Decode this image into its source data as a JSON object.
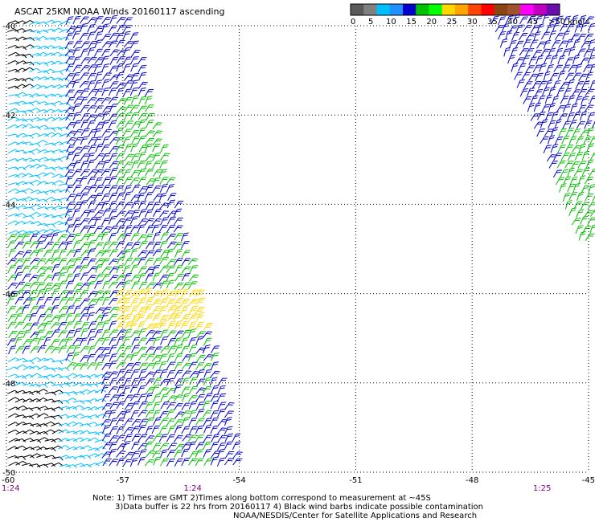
{
  "title": "ASCAT 25KM NOAA Winds 20160117 ascending",
  "colorbar": {
    "colors": [
      "#5a5a5a",
      "#808080",
      "#00bfff",
      "#1e90ff",
      "#0000cd",
      "#00c000",
      "#00ff00",
      "#ffd700",
      "#ffa500",
      "#ff4500",
      "#ff0000",
      "#8b4513",
      "#a0522d",
      "#ff00ff",
      "#c000c0",
      "#6a0dad"
    ],
    "labels": [
      "0",
      "5",
      "10",
      "15",
      "20",
      "25",
      "30",
      "35",
      "40",
      "45",
      ">50 knots"
    ],
    "label_values": [
      0,
      5,
      10,
      15,
      20,
      25,
      30,
      35,
      40,
      45,
      50
    ]
  },
  "map": {
    "lon_range": [
      -60,
      -45
    ],
    "lat_range": [
      -50,
      -40
    ],
    "lon_ticks": [
      "-60",
      "-57",
      "-54",
      "-51",
      "-48",
      "-45"
    ],
    "lon_tick_values": [
      -60,
      -57,
      -54,
      -51,
      -48,
      -45
    ],
    "lat_ticks": [
      "-40",
      "-42",
      "-44",
      "-46",
      "-48",
      "-50"
    ],
    "lat_tick_values": [
      -40,
      -42,
      -44,
      -46,
      -48,
      -50
    ],
    "time_labels": [
      {
        "text": "1:24",
        "lon": -60
      },
      {
        "text": "1:24",
        "lon": -55.2
      },
      {
        "text": "1:25",
        "lon": -46.2
      }
    ],
    "barb_colors": {
      "black": "#000000",
      "cyan": "#00bfff",
      "blue": "#0000cd",
      "green": "#00c000",
      "yellow": "#ffd700"
    }
  },
  "notes": {
    "line1": "Note: 1) Times are GMT 2)Times along bottom correspond to measurement at ~45S",
    "line2": "3)Data buffer is 22 hrs from 20160117 4) Black wind barbs indicate possible contamination",
    "line3": "NOAA/NESDIS/Center for Satellite Applications and Research"
  }
}
